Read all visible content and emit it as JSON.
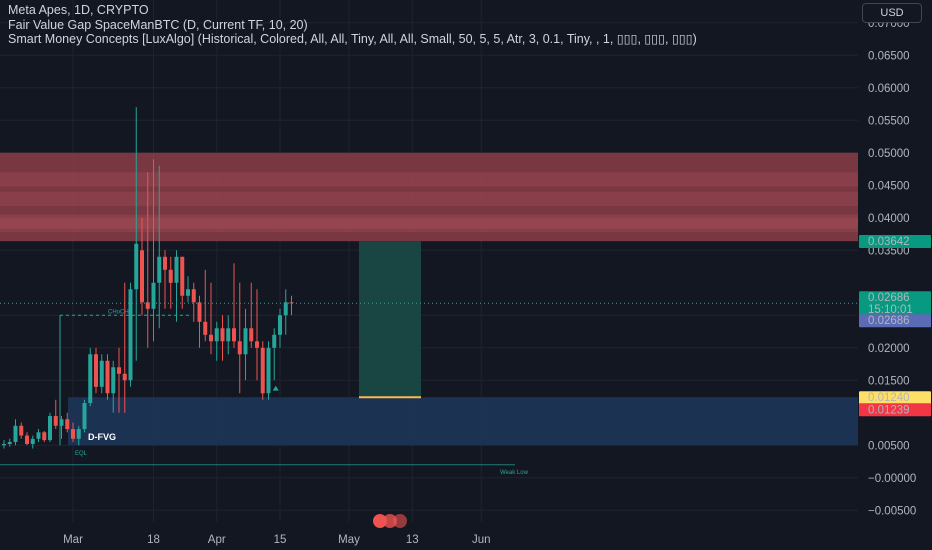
{
  "legend": {
    "line1": "Meta Apes, 1D, CRYPTO",
    "line2": "Fair Value Gap SpaceManBTC (D, Current TF, 10, 20)",
    "line3": "Smart Money Concepts [LuxAlgo] (Historical, Colored, All, All, Tiny, All, All, Small, 50, 5, 5, Atr, 3, 0.1, Tiny, , 1, ▯▯▯, ▯▯▯, ▯▯▯)"
  },
  "currency_button": "USD",
  "colors": {
    "background": "#131722",
    "bull": "#26a69a",
    "bear": "#ef5350",
    "supply_zone": "#8b3d46",
    "demand_zone": "#1e3558",
    "target_zone": "#1b4a46",
    "axis_text": "#b2b5be"
  },
  "price_axis": {
    "ticks": [
      "0.07000",
      "0.06500",
      "0.06000",
      "0.05500",
      "0.05000",
      "0.04500",
      "0.04000",
      "0.03500",
      "0.02500",
      "0.02000",
      "0.01500",
      "0.00500",
      "−0.00000",
      "−0.00500"
    ],
    "tick_values": [
      0.07,
      0.065,
      0.06,
      0.055,
      0.05,
      0.045,
      0.04,
      0.035,
      0.025,
      0.02,
      0.015,
      0.005,
      0.0,
      -0.005
    ],
    "badges": [
      {
        "label": "0.03642",
        "value": 0.03642,
        "bg": "#089981",
        "fg": "#ffffff"
      },
      {
        "label": "0.02686",
        "value": 0.02686,
        "bg": "#089981",
        "fg": "#ffffff",
        "sub": "15:10:01"
      },
      {
        "label": "0.02686",
        "value": 0.02686,
        "bg": "#5b6bb5",
        "fg": "#ffffff",
        "row": 2
      },
      {
        "label": "0.01240",
        "value": 0.0124,
        "bg": "#ffe066",
        "fg": "#131722"
      },
      {
        "label": "0.01239",
        "value": 0.01239,
        "bg": "#f23645",
        "fg": "#ffffff"
      }
    ]
  },
  "time_axis": {
    "labels": [
      "13",
      "Mar",
      "18",
      "Apr",
      "15",
      "May",
      "13",
      "Jun"
    ],
    "bar_index": [
      -4,
      12,
      26,
      37,
      48,
      60,
      71,
      83
    ]
  },
  "annotations": {
    "choch": "CHoCH",
    "eql": "EQL",
    "weak_low": "Weak Low",
    "dfvg": "D-FVG"
  },
  "chart_data": {
    "type": "candlestick",
    "title": "Meta Apes, 1D, CRYPTO",
    "series_name": "Meta Apes",
    "interval": "1D",
    "ylim": [
      -0.0068,
      0.0735
    ],
    "last_price": 0.02686,
    "countdown": "15:10:01",
    "x_labels": [
      "13",
      "Mar",
      "18",
      "Apr",
      "15",
      "May",
      "13",
      "Jun"
    ],
    "ohlc": [
      [
        0.005,
        0.0058,
        0.0045,
        0.0052
      ],
      [
        0.0052,
        0.006,
        0.0048,
        0.0055
      ],
      [
        0.0055,
        0.009,
        0.005,
        0.008
      ],
      [
        0.008,
        0.0085,
        0.006,
        0.0065
      ],
      [
        0.0065,
        0.007,
        0.005,
        0.0052
      ],
      [
        0.0052,
        0.0065,
        0.0045,
        0.006
      ],
      [
        0.006,
        0.0075,
        0.0055,
        0.007
      ],
      [
        0.007,
        0.0072,
        0.0055,
        0.0058
      ],
      [
        0.0058,
        0.01,
        0.0055,
        0.0095
      ],
      [
        0.0095,
        0.012,
        0.0075,
        0.008
      ],
      [
        0.008,
        0.0095,
        0.006,
        0.009
      ],
      [
        0.009,
        0.01,
        0.007,
        0.0075
      ],
      [
        0.0075,
        0.0085,
        0.0055,
        0.006
      ],
      [
        0.006,
        0.008,
        0.005,
        0.0075
      ],
      [
        0.0075,
        0.012,
        0.007,
        0.0115
      ],
      [
        0.0115,
        0.02,
        0.011,
        0.019
      ],
      [
        0.019,
        0.02,
        0.013,
        0.014
      ],
      [
        0.014,
        0.019,
        0.013,
        0.018
      ],
      [
        0.018,
        0.019,
        0.012,
        0.013
      ],
      [
        0.013,
        0.018,
        0.01,
        0.017
      ],
      [
        0.017,
        0.02,
        0.01,
        0.016
      ],
      [
        0.016,
        0.03,
        0.01,
        0.015
      ],
      [
        0.015,
        0.03,
        0.014,
        0.029
      ],
      [
        0.029,
        0.057,
        0.018,
        0.036
      ],
      [
        0.035,
        0.04,
        0.025,
        0.027
      ],
      [
        0.027,
        0.047,
        0.02,
        0.026
      ],
      [
        0.026,
        0.049,
        0.021,
        0.03
      ],
      [
        0.03,
        0.048,
        0.023,
        0.034
      ],
      [
        0.034,
        0.035,
        0.026,
        0.032
      ],
      [
        0.032,
        0.034,
        0.026,
        0.03
      ],
      [
        0.03,
        0.035,
        0.024,
        0.034
      ],
      [
        0.034,
        0.034,
        0.026,
        0.028
      ],
      [
        0.028,
        0.031,
        0.027,
        0.029
      ],
      [
        0.029,
        0.03,
        0.024,
        0.027
      ],
      [
        0.027,
        0.028,
        0.02,
        0.024
      ],
      [
        0.024,
        0.032,
        0.021,
        0.022
      ],
      [
        0.022,
        0.03,
        0.019,
        0.021
      ],
      [
        0.021,
        0.024,
        0.018,
        0.023
      ],
      [
        0.023,
        0.025,
        0.018,
        0.021
      ],
      [
        0.021,
        0.025,
        0.019,
        0.023
      ],
      [
        0.023,
        0.033,
        0.02,
        0.021
      ],
      [
        0.021,
        0.03,
        0.013,
        0.019
      ],
      [
        0.019,
        0.026,
        0.015,
        0.023
      ],
      [
        0.023,
        0.03,
        0.02,
        0.021
      ],
      [
        0.021,
        0.029,
        0.015,
        0.02
      ],
      [
        0.02,
        0.021,
        0.012,
        0.013
      ],
      [
        0.013,
        0.021,
        0.012,
        0.02
      ],
      [
        0.02,
        0.023,
        0.015,
        0.022
      ],
      [
        0.022,
        0.026,
        0.02,
        0.025
      ],
      [
        0.025,
        0.029,
        0.022,
        0.027
      ],
      [
        0.027,
        0.028,
        0.025,
        0.0269
      ]
    ],
    "zones": [
      {
        "kind": "supply",
        "from": 0.0364,
        "to": 0.05
      },
      {
        "kind": "demand",
        "from": 0.005,
        "to": 0.0124
      },
      {
        "kind": "target",
        "from": 0.0124,
        "to": 0.0364
      }
    ]
  }
}
